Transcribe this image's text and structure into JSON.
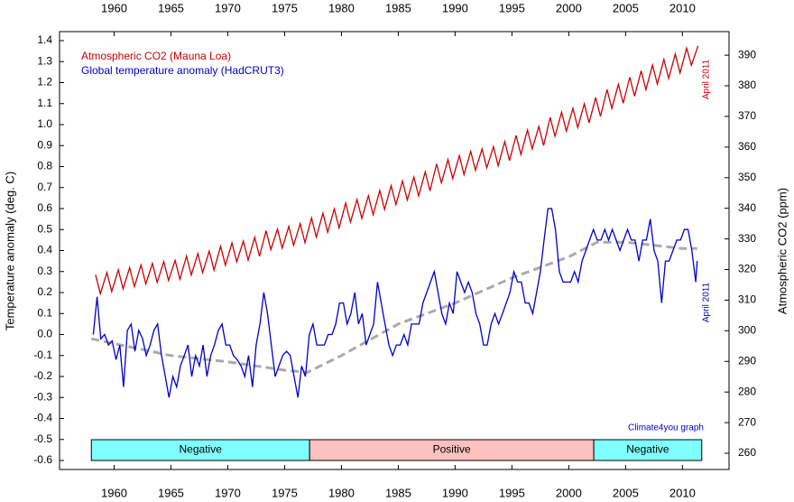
{
  "chart_data": {
    "type": "line",
    "xlim": [
      1955.2,
      2014.1
    ],
    "xticks": [
      1960,
      1965,
      1970,
      1975,
      1980,
      1985,
      1990,
      1995,
      2000,
      2005,
      2010
    ],
    "ylim": [
      -0.643,
      1.443
    ],
    "yticks": [
      -0.6,
      -0.5,
      -0.4,
      -0.3,
      -0.2,
      -0.1,
      {
        "value": 0.0,
        "label": "0.0"
      },
      0.1,
      0.2,
      0.3,
      0.4,
      0.5,
      0.6,
      0.7,
      0.8,
      0.9,
      {
        "value": 1.0,
        "label": "1.0"
      },
      1.1,
      1.2,
      1.3,
      1.4
    ],
    "y2lim": [
      254.7,
      397.7
    ],
    "y2ticks": [
      260,
      270,
      280,
      290,
      300,
      310,
      320,
      330,
      340,
      350,
      360,
      370,
      380,
      390
    ],
    "y_label": "Temperature anomaly (deg. C)",
    "y2_label": "Atmospheric CO2 (ppm)",
    "series": [
      {
        "name": "Atmospheric CO2 (Mauna Loa)",
        "color": "#cc0000",
        "axis": "y2",
        "x": [
          1958.37,
          1958.79,
          1959.37,
          1959.79,
          1960.37,
          1960.79,
          1961.37,
          1961.79,
          1962.37,
          1962.79,
          1963.37,
          1963.79,
          1964.37,
          1964.79,
          1965.37,
          1965.79,
          1966.37,
          1966.79,
          1967.37,
          1967.79,
          1968.37,
          1968.79,
          1969.37,
          1969.79,
          1970.37,
          1970.79,
          1971.37,
          1971.79,
          1972.37,
          1972.79,
          1973.37,
          1973.79,
          1974.37,
          1974.79,
          1975.37,
          1975.79,
          1976.37,
          1976.79,
          1977.37,
          1977.79,
          1978.37,
          1978.79,
          1979.37,
          1979.79,
          1980.37,
          1980.79,
          1981.37,
          1981.79,
          1982.37,
          1982.79,
          1983.37,
          1983.79,
          1984.37,
          1984.79,
          1985.37,
          1985.79,
          1986.37,
          1986.79,
          1987.37,
          1987.79,
          1988.37,
          1988.79,
          1989.37,
          1989.79,
          1990.37,
          1990.79,
          1991.37,
          1991.79,
          1992.37,
          1992.79,
          1993.37,
          1993.79,
          1994.37,
          1994.79,
          1995.37,
          1995.79,
          1996.37,
          1996.79,
          1997.37,
          1997.79,
          1998.37,
          1998.79,
          1999.37,
          1999.79,
          2000.37,
          2000.79,
          2001.37,
          2001.79,
          2002.37,
          2002.79,
          2003.37,
          2003.79,
          2004.37,
          2004.79,
          2005.37,
          2005.79,
          2006.37,
          2006.79,
          2007.37,
          2007.79,
          2008.37,
          2008.79,
          2009.37,
          2009.79,
          2010.37,
          2010.79,
          2011.37
        ],
        "values": [
          318.3,
          312.1,
          319.0,
          312.8,
          319.9,
          313.7,
          320.6,
          314.4,
          321.5,
          315.3,
          322.0,
          315.8,
          322.6,
          316.4,
          323.0,
          316.8,
          324.4,
          318.2,
          325.2,
          319.0,
          326.0,
          319.8,
          327.6,
          321.4,
          328.7,
          322.5,
          329.3,
          323.1,
          330.5,
          324.3,
          332.7,
          326.5,
          333.2,
          327.0,
          334.1,
          327.9,
          335.0,
          328.8,
          336.8,
          330.6,
          338.4,
          332.2,
          339.8,
          333.6,
          341.7,
          335.5,
          342.9,
          336.7,
          344.1,
          337.9,
          345.8,
          339.6,
          347.4,
          341.2,
          348.9,
          342.7,
          350.2,
          344.0,
          351.9,
          345.7,
          354.5,
          348.3,
          355.9,
          349.7,
          357.2,
          351.0,
          358.6,
          352.4,
          359.4,
          353.2,
          360.1,
          353.9,
          361.8,
          355.6,
          363.8,
          357.6,
          365.6,
          359.4,
          366.7,
          360.5,
          369.7,
          363.5,
          371.4,
          365.2,
          372.6,
          366.4,
          374.1,
          367.9,
          376.2,
          370.0,
          378.8,
          372.6,
          380.5,
          374.3,
          382.8,
          376.6,
          384.9,
          378.7,
          386.8,
          380.6,
          388.6,
          382.4,
          390.4,
          384.2,
          392.3,
          386.7,
          393.0
        ]
      },
      {
        "name": "Global temperature anomaly (HadCRUT3)",
        "color": "#0000cc",
        "x": [
          1958.17,
          1958.5,
          1958.83,
          1959.17,
          1959.5,
          1959.83,
          1960.17,
          1960.5,
          1960.83,
          1961.17,
          1961.5,
          1961.83,
          1962.17,
          1962.5,
          1962.83,
          1963.17,
          1963.5,
          1963.83,
          1964.17,
          1964.5,
          1964.83,
          1965.17,
          1965.5,
          1965.83,
          1966.17,
          1966.5,
          1966.83,
          1967.17,
          1967.5,
          1967.83,
          1968.17,
          1968.5,
          1968.83,
          1969.17,
          1969.5,
          1969.83,
          1970.17,
          1970.5,
          1970.83,
          1971.17,
          1971.5,
          1971.83,
          1972.17,
          1972.5,
          1972.83,
          1973.17,
          1973.5,
          1973.83,
          1974.17,
          1974.5,
          1974.83,
          1975.17,
          1975.5,
          1975.83,
          1976.17,
          1976.5,
          1976.83,
          1977.17,
          1977.5,
          1977.83,
          1978.17,
          1978.5,
          1978.83,
          1979.17,
          1979.5,
          1979.83,
          1980.17,
          1980.5,
          1980.83,
          1981.17,
          1981.5,
          1981.83,
          1982.17,
          1982.5,
          1982.83,
          1983.17,
          1983.5,
          1983.83,
          1984.17,
          1984.5,
          1984.83,
          1985.17,
          1985.5,
          1985.83,
          1986.17,
          1986.5,
          1986.83,
          1987.17,
          1987.5,
          1987.83,
          1988.17,
          1988.5,
          1988.83,
          1989.17,
          1989.5,
          1989.83,
          1990.17,
          1990.5,
          1990.83,
          1991.17,
          1991.5,
          1991.83,
          1992.17,
          1992.5,
          1992.83,
          1993.17,
          1993.5,
          1993.83,
          1994.17,
          1994.5,
          1994.83,
          1995.17,
          1995.5,
          1995.83,
          1996.17,
          1996.5,
          1996.83,
          1997.17,
          1997.5,
          1997.83,
          1998.17,
          1998.5,
          1998.83,
          1999.17,
          1999.5,
          1999.83,
          2000.17,
          2000.5,
          2000.83,
          2001.17,
          2001.5,
          2001.83,
          2002.17,
          2002.5,
          2002.83,
          2003.17,
          2003.5,
          2003.83,
          2004.17,
          2004.5,
          2004.83,
          2005.17,
          2005.5,
          2005.83,
          2006.17,
          2006.5,
          2006.83,
          2007.17,
          2007.5,
          2007.83,
          2008.17,
          2008.5,
          2008.83,
          2009.17,
          2009.5,
          2009.83,
          2010.17,
          2010.5,
          2010.83,
          2011.17,
          2011.3
        ],
        "values": [
          0.0,
          0.18,
          -0.02,
          0.0,
          -0.05,
          -0.03,
          -0.12,
          -0.05,
          -0.25,
          0.02,
          0.05,
          -0.08,
          0.02,
          -0.02,
          -0.1,
          -0.05,
          0.02,
          0.05,
          -0.1,
          -0.2,
          -0.3,
          -0.2,
          -0.25,
          -0.15,
          -0.1,
          -0.05,
          -0.2,
          -0.1,
          -0.15,
          -0.05,
          -0.2,
          -0.1,
          -0.05,
          0.02,
          0.05,
          -0.05,
          -0.05,
          -0.1,
          -0.12,
          -0.15,
          -0.2,
          -0.1,
          -0.25,
          -0.05,
          0.05,
          0.2,
          0.1,
          -0.05,
          -0.2,
          -0.15,
          -0.1,
          -0.08,
          -0.1,
          -0.2,
          -0.3,
          -0.15,
          -0.2,
          0.0,
          0.05,
          -0.05,
          -0.05,
          -0.05,
          0.0,
          0.0,
          0.05,
          0.15,
          0.15,
          0.05,
          0.1,
          0.2,
          0.05,
          0.1,
          -0.05,
          0.0,
          0.05,
          0.25,
          0.15,
          0.05,
          -0.05,
          -0.1,
          -0.05,
          -0.05,
          0.0,
          -0.05,
          0.05,
          0.05,
          0.05,
          0.15,
          0.2,
          0.25,
          0.3,
          0.2,
          0.1,
          0.05,
          0.15,
          0.1,
          0.3,
          0.25,
          0.2,
          0.25,
          0.2,
          0.1,
          0.05,
          -0.05,
          -0.05,
          0.05,
          0.1,
          0.05,
          0.1,
          0.15,
          0.2,
          0.3,
          0.25,
          0.25,
          0.15,
          0.15,
          0.1,
          0.2,
          0.3,
          0.45,
          0.6,
          0.6,
          0.5,
          0.3,
          0.25,
          0.25,
          0.25,
          0.3,
          0.25,
          0.35,
          0.4,
          0.45,
          0.5,
          0.45,
          0.45,
          0.5,
          0.45,
          0.5,
          0.45,
          0.4,
          0.45,
          0.5,
          0.45,
          0.45,
          0.35,
          0.45,
          0.45,
          0.55,
          0.4,
          0.35,
          0.15,
          0.35,
          0.35,
          0.4,
          0.45,
          0.45,
          0.5,
          0.5,
          0.4,
          0.25,
          0.35
        ]
      },
      {
        "color": "#aaaaaa",
        "dashed": true,
        "x": [
          1958,
          1965,
          1970,
          1975,
          1977,
          1980,
          1985,
          1990,
          1995,
          2000,
          2002.5,
          2005,
          2010,
          2011.3
        ],
        "values": [
          -0.02,
          -0.1,
          -0.13,
          -0.17,
          -0.18,
          -0.1,
          0.05,
          0.15,
          0.27,
          0.37,
          0.44,
          0.44,
          0.41,
          0.41
        ]
      }
    ],
    "phases": [
      {
        "label": "Negative",
        "start": 1958.0,
        "end": 1977.2,
        "color": "#80ffff"
      },
      {
        "label": "Positive",
        "start": 1977.2,
        "end": 2002.2,
        "color": "#ffc0c0"
      },
      {
        "label": "Negative",
        "start": 2002.2,
        "end": 2011.7,
        "color": "#80ffff"
      }
    ],
    "annotations": [
      {
        "text": "April 2011",
        "color": "#cc0000"
      },
      {
        "text": "April 2011",
        "color": "#0000cc"
      },
      {
        "text": "Climate4you graph",
        "color": "#0000cc"
      }
    ]
  }
}
